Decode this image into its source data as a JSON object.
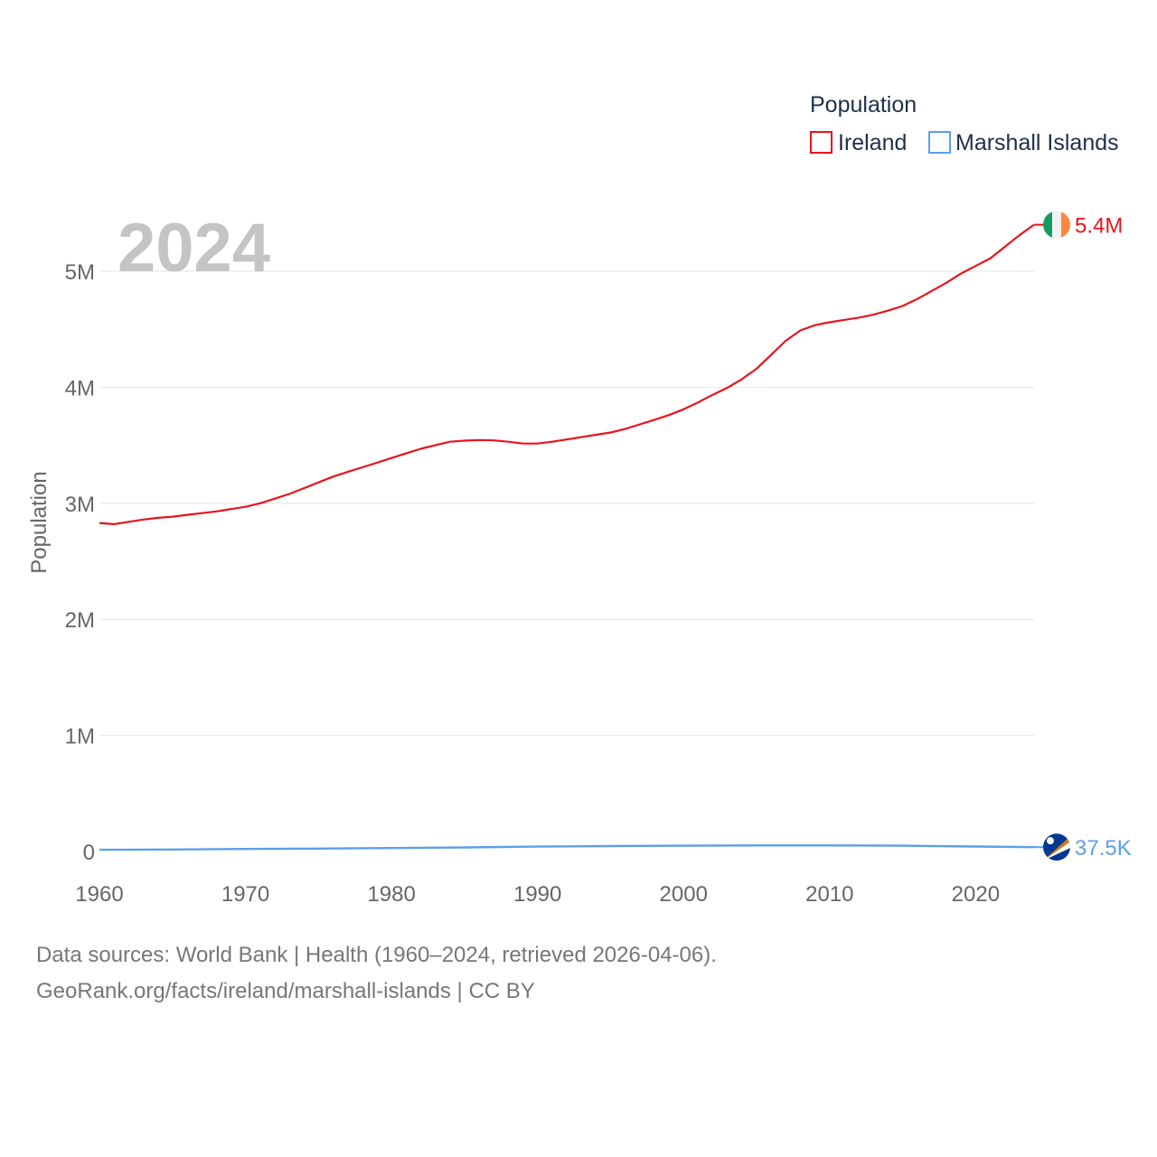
{
  "chart_data": {
    "type": "line",
    "current_year_label": "2024",
    "ylabel": "Population",
    "xlabel": "",
    "xlim": [
      1960,
      2024
    ],
    "ylim": [
      0,
      5500000
    ],
    "x_ticks": [
      1960,
      1970,
      1980,
      1990,
      2000,
      2010,
      2020
    ],
    "x_tick_labels": [
      "1960",
      "1970",
      "1980",
      "1990",
      "2000",
      "2010",
      "2020"
    ],
    "y_ticks": [
      0,
      1000000,
      2000000,
      3000000,
      4000000,
      5000000
    ],
    "y_tick_labels": [
      "0",
      "1M",
      "2M",
      "3M",
      "4M",
      "5M"
    ],
    "legend": {
      "title": "Population",
      "position": "top-right",
      "items": [
        {
          "label": "Ireland",
          "color": "#e8141e"
        },
        {
          "label": "Marshall Islands",
          "color": "#5ba0e8"
        }
      ]
    },
    "series": [
      {
        "name": "Ireland",
        "color": "#e8141e",
        "end_label": "5.4M",
        "flag_icon": "ireland-flag-icon",
        "x": [
          1960,
          1961,
          1962,
          1963,
          1964,
          1965,
          1966,
          1967,
          1968,
          1969,
          1970,
          1971,
          1972,
          1973,
          1974,
          1975,
          1976,
          1977,
          1978,
          1979,
          1980,
          1981,
          1982,
          1983,
          1984,
          1985,
          1986,
          1987,
          1988,
          1989,
          1990,
          1991,
          1992,
          1993,
          1994,
          1995,
          1996,
          1997,
          1998,
          1999,
          2000,
          2001,
          2002,
          2003,
          2004,
          2005,
          2006,
          2007,
          2008,
          2009,
          2010,
          2011,
          2012,
          2013,
          2014,
          2015,
          2016,
          2017,
          2018,
          2019,
          2020,
          2021,
          2022,
          2023,
          2024
        ],
        "values": [
          2830000,
          2820000,
          2840000,
          2860000,
          2875000,
          2885000,
          2900000,
          2915000,
          2930000,
          2950000,
          2970000,
          3000000,
          3040000,
          3080000,
          3130000,
          3180000,
          3230000,
          3270000,
          3310000,
          3350000,
          3390000,
          3430000,
          3470000,
          3500000,
          3530000,
          3540000,
          3545000,
          3542000,
          3530000,
          3515000,
          3515000,
          3530000,
          3550000,
          3570000,
          3590000,
          3610000,
          3640000,
          3680000,
          3720000,
          3760000,
          3810000,
          3870000,
          3935000,
          3995000,
          4070000,
          4160000,
          4280000,
          4400000,
          4490000,
          4535000,
          4560000,
          4580000,
          4600000,
          4625000,
          4660000,
          4700000,
          4760000,
          4830000,
          4900000,
          4980000,
          5045000,
          5110000,
          5210000,
          5310000,
          5400000
        ]
      },
      {
        "name": "Marshall Islands",
        "color": "#5ba0e8",
        "end_label": "37.5K",
        "flag_icon": "marshall-islands-flag-icon",
        "x": [
          1960,
          1965,
          1970,
          1975,
          1980,
          1985,
          1990,
          1995,
          2000,
          2005,
          2010,
          2015,
          2020,
          2024
        ],
        "values": [
          14500,
          17500,
          21500,
          25000,
          29500,
          35000,
          42000,
          47000,
          50000,
          52000,
          52500,
          49500,
          43000,
          37500
        ]
      }
    ]
  },
  "footer": {
    "sources": "Data sources: World Bank | Health (1960–2024, retrieved 2026-04-06).",
    "credit": "GeoRank.org/facts/ireland/marshall-islands | CC BY"
  }
}
